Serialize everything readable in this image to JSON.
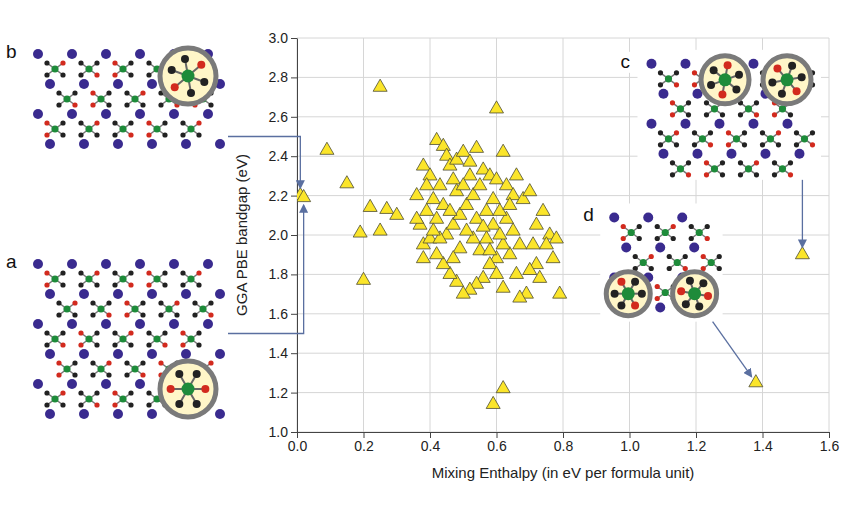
{
  "chart_data": {
    "type": "scatter",
    "xlabel": "Mixing Enthalpy (in eV per formula unit)",
    "ylabel": "GGA PBE bandgap (eV)",
    "marker": "triangle",
    "color": "#fbe52a",
    "grid": true,
    "xlim": [
      0,
      1.6
    ],
    "ylim": [
      1,
      3
    ],
    "xticks": [
      {
        "value": 0,
        "label": "0.0"
      },
      0.2,
      0.4,
      0.6,
      0.8,
      {
        "value": 1,
        "label": "1.0"
      },
      1.2,
      1.4,
      1.6
    ],
    "yticks": [
      {
        "value": 1,
        "label": "1.0"
      },
      1.2,
      1.4,
      1.6,
      1.8,
      {
        "value": 2,
        "label": "2.0"
      },
      2.2,
      2.4,
      2.6,
      2.8,
      {
        "value": 3,
        "label": "3.0"
      }
    ],
    "x": [
      0.01,
      0.02,
      0.09,
      0.15,
      0.25,
      0.19,
      0.25,
      0.22,
      0.2,
      0.27,
      0.3,
      0.6,
      0.62,
      0.59,
      1.38,
      1.52,
      0.38,
      0.4,
      0.42,
      0.44,
      0.45,
      0.43,
      0.41,
      0.39,
      0.37,
      0.36,
      0.38,
      0.4,
      0.42,
      0.44,
      0.46,
      0.47,
      0.48,
      0.5,
      0.52,
      0.54,
      0.56,
      0.58,
      0.6,
      0.62,
      0.63,
      0.65,
      0.68,
      0.7,
      0.72,
      0.74,
      0.76,
      0.78,
      0.79,
      0.75,
      0.72,
      0.7,
      0.69,
      0.67,
      0.66,
      0.64,
      0.62,
      0.6,
      0.58,
      0.56,
      0.54,
      0.52,
      0.5,
      0.48,
      0.46,
      0.44,
      0.42,
      0.45,
      0.47,
      0.49,
      0.51,
      0.53,
      0.55,
      0.57,
      0.59,
      0.61,
      0.63,
      0.65,
      0.67,
      0.55,
      0.53,
      0.51,
      0.49,
      0.47,
      0.57,
      0.59,
      0.61,
      0.52,
      0.48,
      0.46,
      0.5,
      0.54,
      0.56,
      0.58,
      0.6,
      0.62,
      0.64,
      0.66,
      0.71,
      0.73,
      0.77,
      0.43,
      0.41,
      0.39,
      0.36,
      0.38
    ],
    "values": [
      2.2,
      2.19,
      2.43,
      2.26,
      2.75,
      2.01,
      2.02,
      2.14,
      1.77,
      2.13,
      2.1,
      2.64,
      1.22,
      1.14,
      1.25,
      1.9,
      2.35,
      2.3,
      2.48,
      2.45,
      2.4,
      2.25,
      2.18,
      2.12,
      2.05,
      2.2,
      1.95,
      1.98,
      2.08,
      2.15,
      2.35,
      2.28,
      2.38,
      2.42,
      2.37,
      2.44,
      2.33,
      2.3,
      2.28,
      2.42,
      2.25,
      2.2,
      2.18,
      2.22,
      2.05,
      2.12,
      2.0,
      1.98,
      1.7,
      1.95,
      1.85,
      1.82,
      1.7,
      1.68,
      1.8,
      1.9,
      1.95,
      1.88,
      1.85,
      1.78,
      1.75,
      1.72,
      1.7,
      1.76,
      1.8,
      1.85,
      1.9,
      2.0,
      2.05,
      2.1,
      2.15,
      2.2,
      2.25,
      2.12,
      2.05,
      2.0,
      2.08,
      2.02,
      1.95,
      1.92,
      1.98,
      2.02,
      1.93,
      1.88,
      1.98,
      2.18,
      2.12,
      2.3,
      2.22,
      2.12,
      2.25,
      2.08,
      2.04,
      1.92,
      1.8,
      1.73,
      2.15,
      2.3,
      1.95,
      1.78,
      1.88,
      1.98,
      2.02,
      2.25,
      2.08,
      1.88
    ],
    "annotations": [
      {
        "text": "a",
        "x": 0.02,
        "y": 2.19
      },
      {
        "text": "b",
        "x": 0.01,
        "y": 2.2
      },
      {
        "text": "c",
        "x": 1.52,
        "y": 1.9
      },
      {
        "text": "d",
        "x": 1.38,
        "y": 1.25
      }
    ]
  }
}
